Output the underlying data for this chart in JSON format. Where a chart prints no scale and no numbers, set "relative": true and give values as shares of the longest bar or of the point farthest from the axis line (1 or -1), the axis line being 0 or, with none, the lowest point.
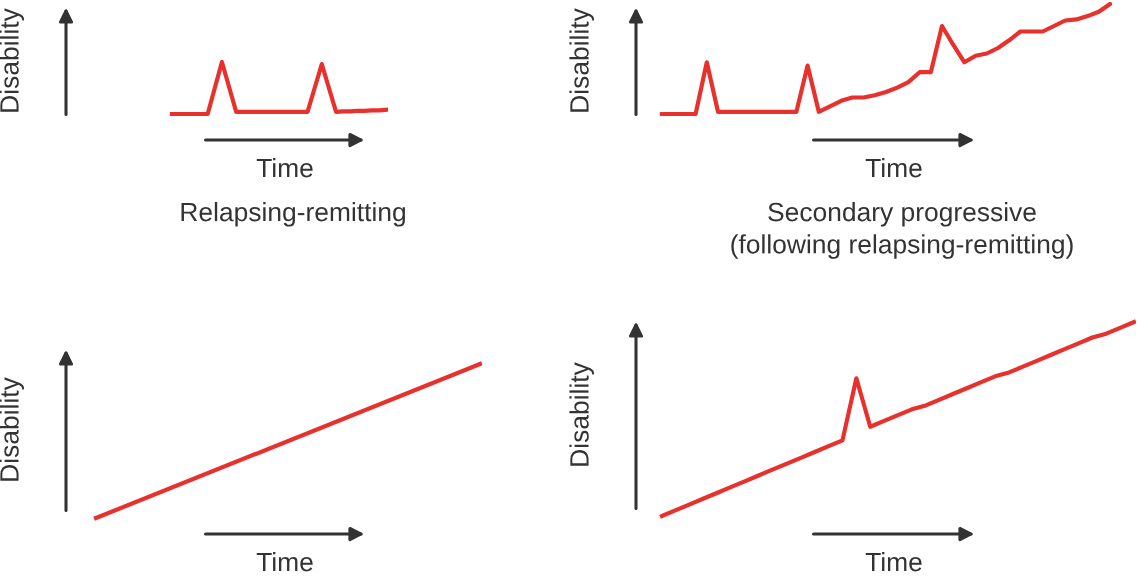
{
  "chart_data": [
    {
      "type": "line",
      "title": "Relapsing-remitting",
      "xlabel": "Time",
      "ylabel": "Disability",
      "relative": true,
      "tick_labels": false,
      "categories": [
        null,
        null,
        null,
        null,
        null,
        null,
        null,
        null,
        null,
        null,
        null,
        null,
        null,
        null,
        null,
        null,
        null,
        null,
        null,
        null,
        null,
        null,
        null,
        null,
        null,
        null,
        null,
        null,
        null,
        null,
        null
      ],
      "series": [
        {
          "color": "#e8302c",
          "values": [
            0,
            0,
            0,
            0,
            0,
            0,
            0.5,
            1,
            0.52,
            0.04,
            0.04,
            0.04,
            0.04,
            0.04,
            0.04,
            0.04,
            0.04,
            0.04,
            0.04,
            0.04,
            0.5,
            0.96,
            0.5,
            0.04,
            0.05,
            0.05,
            0.06,
            0.06,
            0.07,
            0.07,
            0.08
          ]
        }
      ]
    },
    {
      "type": "line",
      "title": "Secondary progressive\n(following relapsing-remitting)",
      "xlabel": "Time",
      "ylabel": "Disability",
      "relative": true,
      "tick_labels": false,
      "categories": [
        null,
        null,
        null,
        null,
        null,
        null,
        null,
        null,
        null,
        null,
        null,
        null,
        null,
        null,
        null,
        null,
        null,
        null,
        null,
        null,
        null,
        null,
        null,
        null,
        null,
        null,
        null,
        null,
        null,
        null,
        null,
        null,
        null,
        null,
        null,
        null,
        null,
        null,
        null,
        null,
        null
      ],
      "series": [
        {
          "color": "#e8302c",
          "values": [
            0,
            0,
            0,
            0,
            0.47,
            0.02,
            0.02,
            0.02,
            0.02,
            0.02,
            0.02,
            0.02,
            0.02,
            0.44,
            0.02,
            0.07,
            0.12,
            0.15,
            0.15,
            0.17,
            0.2,
            0.24,
            0.29,
            0.38,
            0.38,
            0.8,
            0.63,
            0.47,
            0.53,
            0.55,
            0.6,
            0.67,
            0.75,
            0.75,
            0.75,
            0.8,
            0.85,
            0.86,
            0.89,
            0.93,
            1
          ]
        }
      ]
    },
    {
      "type": "line",
      "xlabel": "Time",
      "ylabel": "Disability",
      "relative": true,
      "tick_labels": false,
      "categories": [
        null,
        null
      ],
      "series": [
        {
          "color": "#e8302c",
          "values": [
            0,
            1
          ]
        }
      ]
    },
    {
      "type": "line",
      "xlabel": "Time",
      "ylabel": "Disability",
      "relative": true,
      "tick_labels": false,
      "categories": [
        null,
        null,
        null,
        null,
        null,
        null,
        null,
        null,
        null,
        null,
        null,
        null,
        null,
        null,
        null,
        null,
        null,
        null,
        null,
        null,
        null,
        null,
        null,
        null,
        null,
        null,
        null,
        null,
        null,
        null,
        null,
        null,
        null,
        null,
        null
      ],
      "series": [
        {
          "color": "#e8302c",
          "values": [
            0,
            0.03,
            0.06,
            0.09,
            0.12,
            0.15,
            0.18,
            0.21,
            0.24,
            0.27,
            0.3,
            0.33,
            0.36,
            0.39,
            0.71,
            0.46,
            0.49,
            0.52,
            0.55,
            0.57,
            0.6,
            0.63,
            0.66,
            0.69,
            0.72,
            0.74,
            0.77,
            0.8,
            0.83,
            0.86,
            0.89,
            0.92,
            0.94,
            0.97,
            1
          ]
        }
      ]
    }
  ]
}
